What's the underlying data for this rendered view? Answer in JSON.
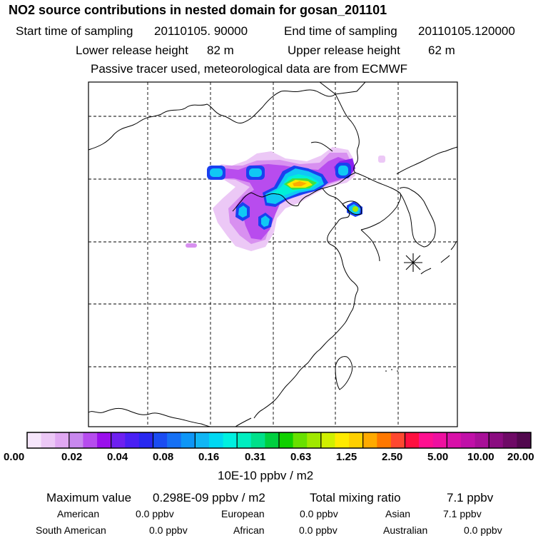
{
  "header": {
    "title": "NO2 source contributions in nested domain for gosan_201101",
    "start_label": "Start time of sampling",
    "start_value": "20110105. 90000",
    "end_label": "End time of sampling",
    "end_value": "20110105.120000",
    "lower_label": "Lower release height",
    "lower_value": "82 m",
    "upper_label": "Upper release height",
    "upper_value": "62 m",
    "note": "Passive tracer used, meteorological data are from ECMWF"
  },
  "colorbar": {
    "labels": [
      "0.00",
      "0.02",
      "0.04",
      "0.08",
      "0.16",
      "0.31",
      "0.63",
      "1.25",
      "2.50",
      "5.00",
      "10.00",
      "20.00"
    ],
    "unit": "10E-10 ppbv / m2",
    "colors": [
      "#f6e6fb",
      "#ecc8f6",
      "#e0a8f2",
      "#c888ee",
      "#b64cee",
      "#9a10ec",
      "#6e20f0",
      "#4a20f4",
      "#2828f0",
      "#1a4cf2",
      "#1670f4",
      "#0e96f6",
      "#10b6f4",
      "#00d8f2",
      "#00f0e0",
      "#00eec0",
      "#00e08a",
      "#00d040",
      "#10d000",
      "#68e000",
      "#a0e800",
      "#d0f000",
      "#ffea00",
      "#ffd000",
      "#ffaa00",
      "#ff7800",
      "#ff4830",
      "#ff1040",
      "#ff1090",
      "#ee10a0",
      "#d810a8",
      "#c010a8",
      "#a81098",
      "#8a0c80",
      "#6e0a66",
      "#52084e"
    ]
  },
  "stats": {
    "max_label": "Maximum value",
    "max_value": "0.298E-09 ppbv / m2",
    "total_label": "Total mixing ratio",
    "total_value": "7.1 ppbv",
    "american_label": "American",
    "american_value": "0.0 ppbv",
    "european_label": "European",
    "european_value": "0.0 ppbv",
    "asian_label": "Asian",
    "asian_value": "7.1 ppbv",
    "south_american_label": "South American",
    "south_american_value": "0.0 ppbv",
    "african_label": "African",
    "african_value": "0.0 ppbv",
    "australian_label": "Australian",
    "australian_value": "0.0 ppbv"
  },
  "map": {
    "receptor": "gosan",
    "plume_colors": {
      "faint": "#ecc8f6",
      "light": "#d890f0",
      "mid": "#b84cee",
      "deep": "#8a20f0",
      "blue": "#1a40f0",
      "cyan": "#10c8f4",
      "aqua": "#00f0d8",
      "green": "#40e040",
      "yellow": "#ffea00",
      "orange": "#ffaa00"
    }
  }
}
